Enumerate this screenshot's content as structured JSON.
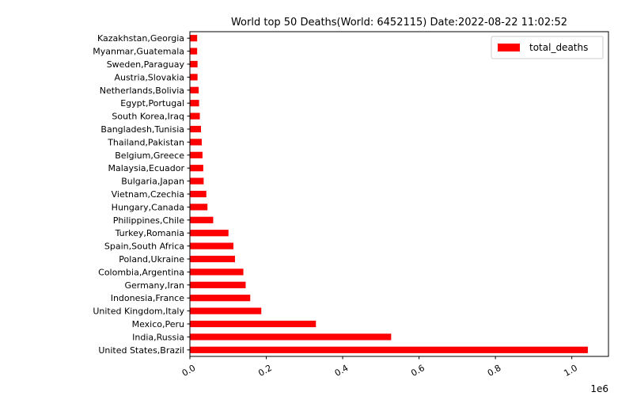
{
  "chart_data": {
    "type": "bar",
    "orientation": "horizontal",
    "title": "World top 50 Deaths(World: 6452115) Date:2022-08-22 11:02:52",
    "categories": [
      "United States,Brazil",
      "India,Russia",
      "Mexico,Peru",
      "United Kingdom,Italy",
      "Indonesia,France",
      "Germany,Iran",
      "Colombia,Argentina",
      "Poland,Ukraine",
      "Spain,South Africa",
      "Turkey,Romania",
      "Philippines,Chile",
      "Hungary,Canada",
      "Vietnam,Czechia",
      "Bulgaria,Japan",
      "Malaysia,Ecuador",
      "Belgium,Greece",
      "Thailand,Pakistan",
      "Bangladesh,Tunisia",
      "South Korea,Iraq",
      "Egypt,Portugal",
      "Netherlands,Bolivia",
      "Austria,Slovakia",
      "Sweden,Paraguay",
      "Myanmar,Guatemala",
      "Kazakhstan,Georgia"
    ],
    "series": [
      {
        "name": "total_deaths",
        "color": "#ff0000",
        "values": [
          1042000,
          527000,
          330000,
          187000,
          158000,
          146000,
          140000,
          118000,
          114000,
          101000,
          61000,
          46000,
          43000,
          36000,
          35000,
          33000,
          31000,
          29000,
          26000,
          24000,
          23000,
          20000,
          20000,
          19000,
          19000
        ]
      }
    ],
    "xlim": [
      0,
      1096000
    ],
    "x_ticks": [
      0,
      200000,
      400000,
      600000,
      800000,
      1000000
    ],
    "x_tick_labels": [
      "0.0",
      "0.2",
      "0.4",
      "0.6",
      "0.8",
      "1.0"
    ],
    "x_offset_label": "1e6",
    "legend_position": "top-right",
    "grid": false
  }
}
